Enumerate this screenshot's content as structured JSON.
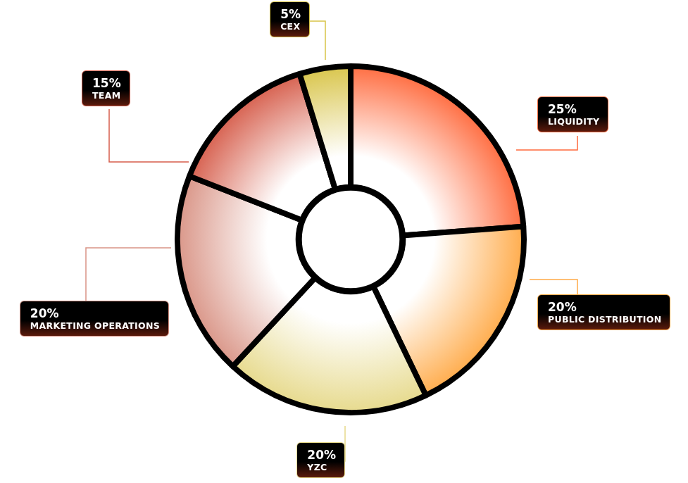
{
  "chart_data": {
    "type": "doughnut",
    "categories": [
      "LIQUIDITY",
      "PUBLIC DISTRIBUTION",
      "YZC",
      "MARKETING OPERATIONS",
      "TEAM",
      "CEX"
    ],
    "values": [
      25,
      20,
      20,
      20,
      15,
      5
    ],
    "value_labels": [
      "25%",
      "20%",
      "20%",
      "20%",
      "15%",
      "5%"
    ],
    "colors": [
      "#ff6a3d",
      "#ffaa48",
      "#e6d98a",
      "#d99486",
      "#d65e4c",
      "#d8c448"
    ],
    "data_labels": true
  }
}
